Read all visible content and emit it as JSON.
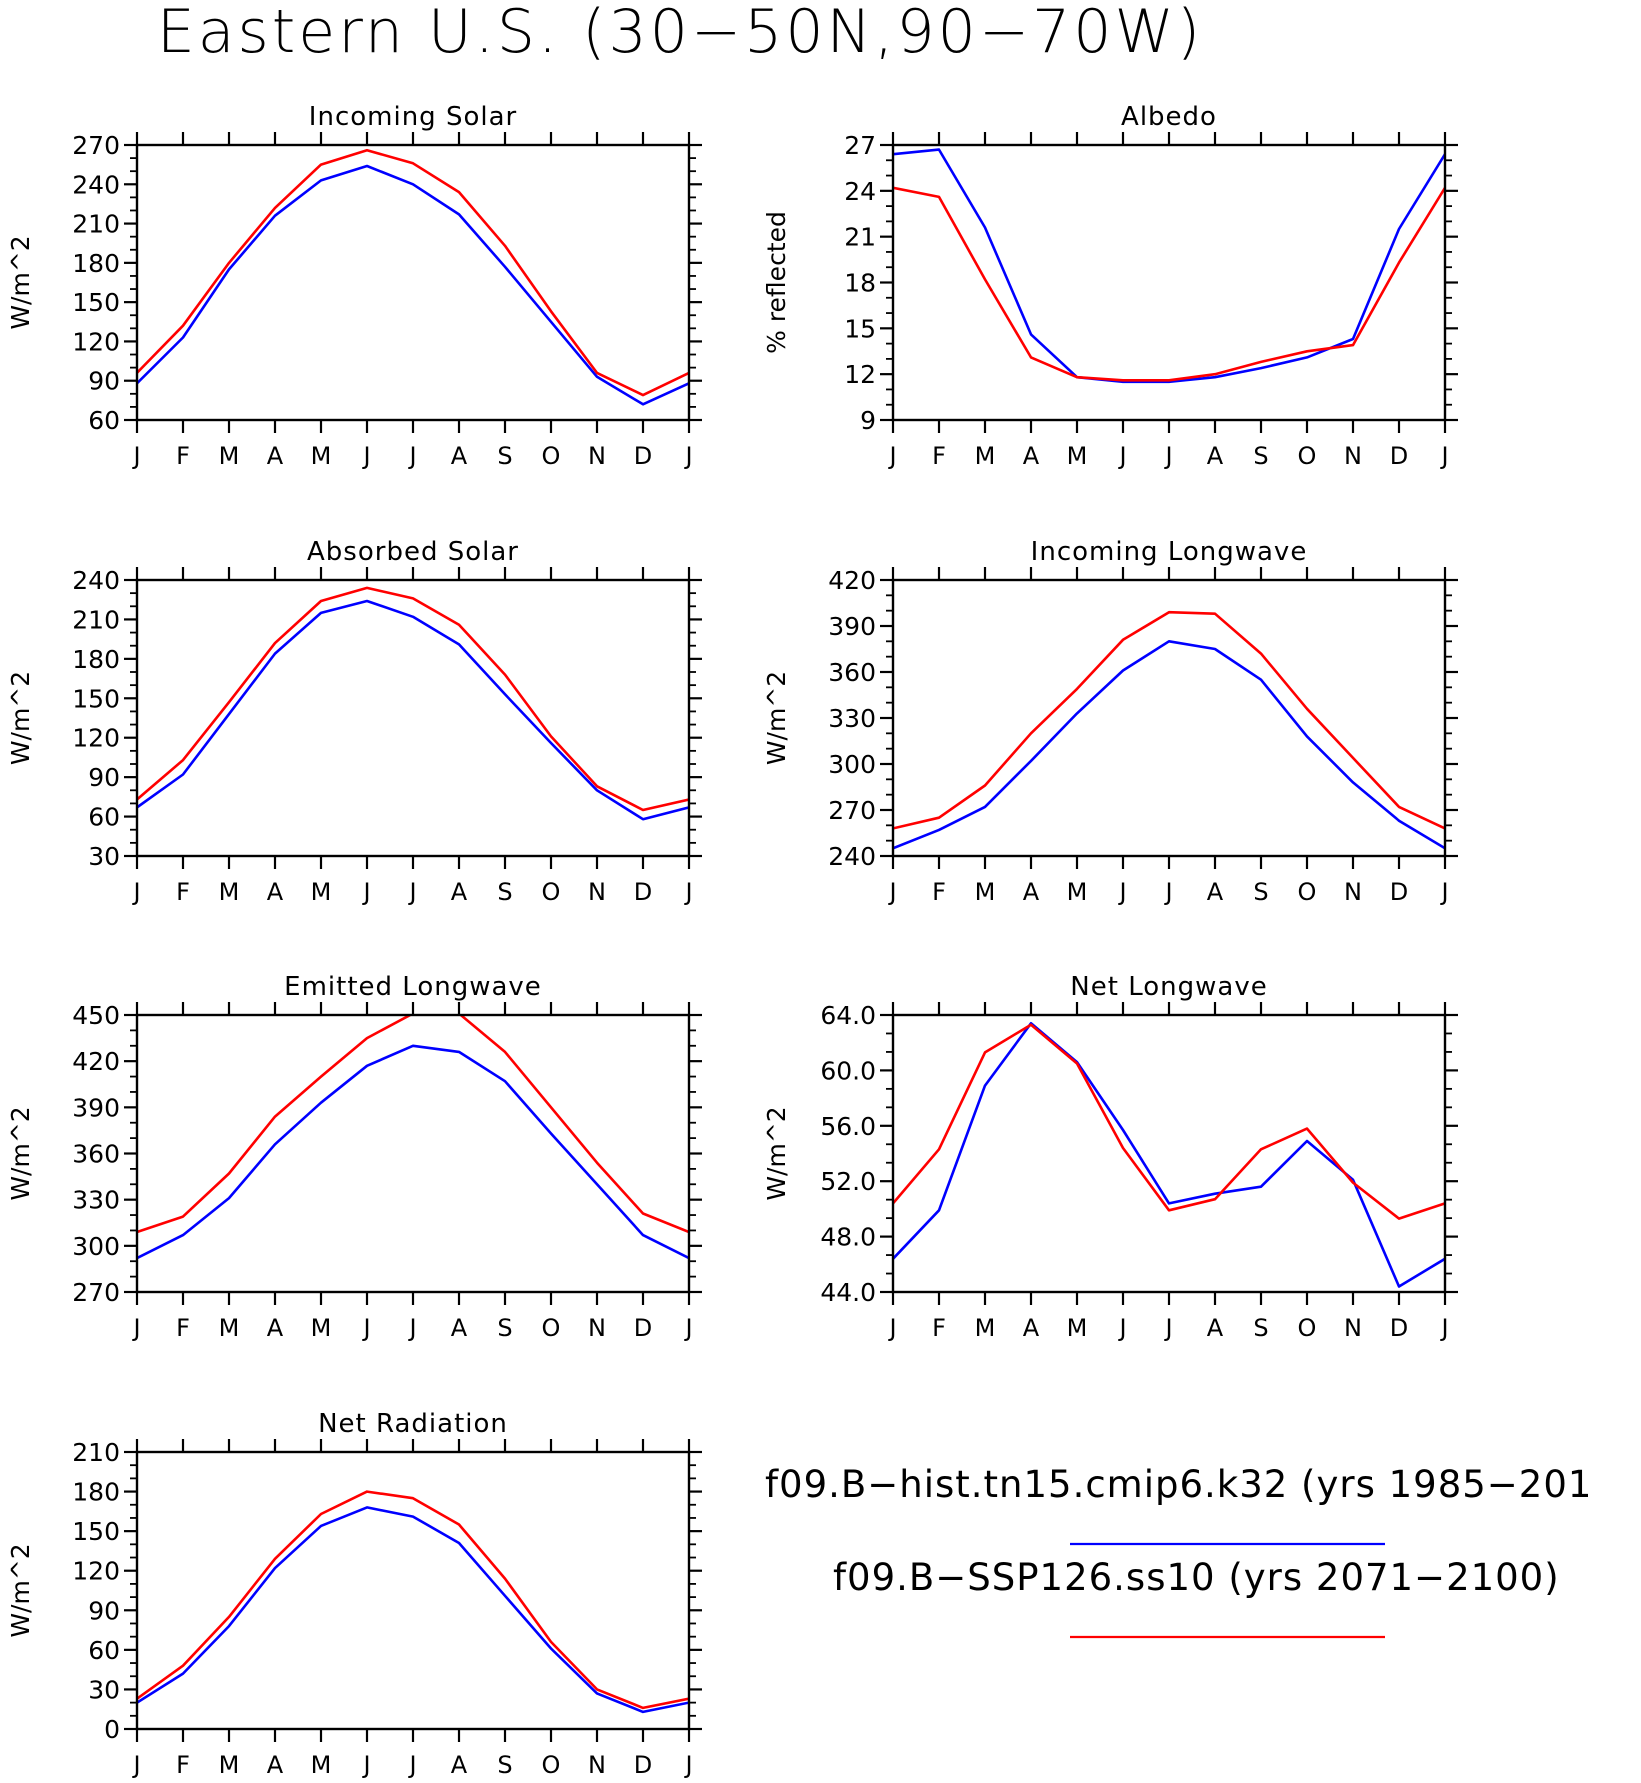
{
  "title": "Eastern U.S. (30−50N,90−70W)",
  "months": [
    "J",
    "F",
    "M",
    "A",
    "M",
    "J",
    "J",
    "A",
    "S",
    "O",
    "N",
    "D",
    "J"
  ],
  "colors": {
    "historical": "#0000ff",
    "future": "#ff0000",
    "axis": "#000000"
  },
  "legend": {
    "entries": [
      {
        "label": "f09.B−hist.tn15.cmip6.k32 (yrs 1985−201",
        "color": "#0000ff"
      },
      {
        "label": "f09.B−SSP126.ss10 (yrs 2071−2100)",
        "color": "#ff0000"
      }
    ]
  },
  "chart_data": [
    {
      "type": "line",
      "title": "Incoming Solar",
      "ylabel": "W/m^2",
      "ylim": [
        60,
        270
      ],
      "yticks": [
        "60",
        "90",
        "120",
        "150",
        "180",
        "210",
        "240",
        "270"
      ],
      "x": [
        "J",
        "F",
        "M",
        "A",
        "M",
        "J",
        "J",
        "A",
        "S",
        "O",
        "N",
        "D",
        "J"
      ],
      "series": [
        {
          "color": "#0000ff",
          "values": [
            88,
            123,
            175,
            216,
            243,
            254,
            240,
            217,
            177,
            135,
            93,
            72,
            88
          ]
        },
        {
          "color": "#ff0000",
          "values": [
            96,
            132,
            180,
            222,
            255,
            266,
            256,
            234,
            193,
            143,
            96,
            79,
            96
          ]
        }
      ]
    },
    {
      "type": "line",
      "title": "Albedo",
      "ylabel": "% reflected",
      "ylim": [
        9,
        27
      ],
      "yticks": [
        "9",
        "12",
        "15",
        "18",
        "21",
        "24",
        "27"
      ],
      "x": [
        "J",
        "F",
        "M",
        "A",
        "M",
        "J",
        "J",
        "A",
        "S",
        "O",
        "N",
        "D",
        "J"
      ],
      "series": [
        {
          "color": "#0000ff",
          "values": [
            26.4,
            26.7,
            21.6,
            14.6,
            11.8,
            11.5,
            11.5,
            11.8,
            12.4,
            13.1,
            14.3,
            21.5,
            26.4
          ]
        },
        {
          "color": "#ff0000",
          "values": [
            24.2,
            23.6,
            18.2,
            13.1,
            11.8,
            11.6,
            11.6,
            12.0,
            12.8,
            13.5,
            13.9,
            19.3,
            24.2
          ]
        }
      ]
    },
    {
      "type": "line",
      "title": "Absorbed Solar",
      "ylabel": "W/m^2",
      "ylim": [
        30,
        240
      ],
      "yticks": [
        "30",
        "60",
        "90",
        "120",
        "150",
        "180",
        "210",
        "240"
      ],
      "x": [
        "J",
        "F",
        "M",
        "A",
        "M",
        "J",
        "J",
        "A",
        "S",
        "O",
        "N",
        "D",
        "J"
      ],
      "series": [
        {
          "color": "#0000ff",
          "values": [
            67,
            92,
            138,
            184,
            215,
            224,
            212,
            191,
            153,
            116,
            80,
            58,
            67
          ]
        },
        {
          "color": "#ff0000",
          "values": [
            73,
            103,
            147,
            192,
            224,
            234,
            226,
            206,
            168,
            121,
            83,
            65,
            73
          ]
        }
      ]
    },
    {
      "type": "line",
      "title": "Incoming Longwave",
      "ylabel": "W/m^2",
      "ylim": [
        240,
        420
      ],
      "yticks": [
        "240",
        "270",
        "300",
        "330",
        "360",
        "390",
        "420"
      ],
      "x": [
        "J",
        "F",
        "M",
        "A",
        "M",
        "J",
        "J",
        "A",
        "S",
        "O",
        "N",
        "D",
        "J"
      ],
      "series": [
        {
          "color": "#0000ff",
          "values": [
            245,
            257,
            272,
            302,
            333,
            361,
            380,
            375,
            355,
            318,
            288,
            263,
            245
          ]
        },
        {
          "color": "#ff0000",
          "values": [
            258,
            265,
            286,
            320,
            349,
            381,
            399,
            398,
            372,
            336,
            304,
            272,
            258
          ]
        }
      ]
    },
    {
      "type": "line",
      "title": "Emitted Longwave",
      "ylabel": "W/m^2",
      "ylim": [
        270,
        450
      ],
      "yticks": [
        "270",
        "300",
        "330",
        "360",
        "390",
        "420",
        "450"
      ],
      "x": [
        "J",
        "F",
        "M",
        "A",
        "M",
        "J",
        "J",
        "A",
        "S",
        "O",
        "N",
        "D",
        "J"
      ],
      "series": [
        {
          "color": "#0000ff",
          "values": [
            292,
            307,
            331,
            366,
            393,
            417,
            430,
            426,
            407,
            373,
            340,
            307,
            292
          ]
        },
        {
          "color": "#ff0000",
          "values": [
            309,
            319,
            347,
            384,
            410,
            435,
            451,
            451,
            426,
            390,
            354,
            321,
            309
          ]
        }
      ]
    },
    {
      "type": "line",
      "title": "Net Longwave",
      "ylabel": "W/m^2",
      "ylim": [
        44.0,
        64.0
      ],
      "yticks": [
        "44.0",
        "48.0",
        "52.0",
        "56.0",
        "60.0",
        "64.0"
      ],
      "x": [
        "J",
        "F",
        "M",
        "A",
        "M",
        "J",
        "J",
        "A",
        "S",
        "O",
        "N",
        "D",
        "J"
      ],
      "series": [
        {
          "color": "#0000ff",
          "values": [
            46.4,
            49.9,
            58.9,
            63.4,
            60.6,
            55.7,
            50.4,
            51.1,
            51.6,
            54.9,
            52.1,
            44.4,
            46.4
          ]
        },
        {
          "color": "#ff0000",
          "values": [
            50.4,
            54.3,
            61.3,
            63.3,
            60.5,
            54.4,
            49.9,
            50.7,
            54.3,
            55.8,
            51.9,
            49.3,
            50.4
          ]
        }
      ]
    },
    {
      "type": "line",
      "title": "Net Radiation",
      "ylabel": "W/m^2",
      "ylim": [
        0,
        210
      ],
      "yticks": [
        "0",
        "30",
        "60",
        "90",
        "120",
        "150",
        "180",
        "210"
      ],
      "x": [
        "J",
        "F",
        "M",
        "A",
        "M",
        "J",
        "J",
        "A",
        "S",
        "O",
        "N",
        "D",
        "J"
      ],
      "series": [
        {
          "color": "#0000ff",
          "values": [
            20,
            42,
            78,
            122,
            154,
            168,
            161,
            141,
            101,
            61,
            27,
            13,
            20
          ]
        },
        {
          "color": "#ff0000",
          "values": [
            23,
            48,
            85,
            129,
            163,
            180,
            175,
            155,
            114,
            66,
            30,
            16,
            23
          ]
        }
      ]
    }
  ]
}
